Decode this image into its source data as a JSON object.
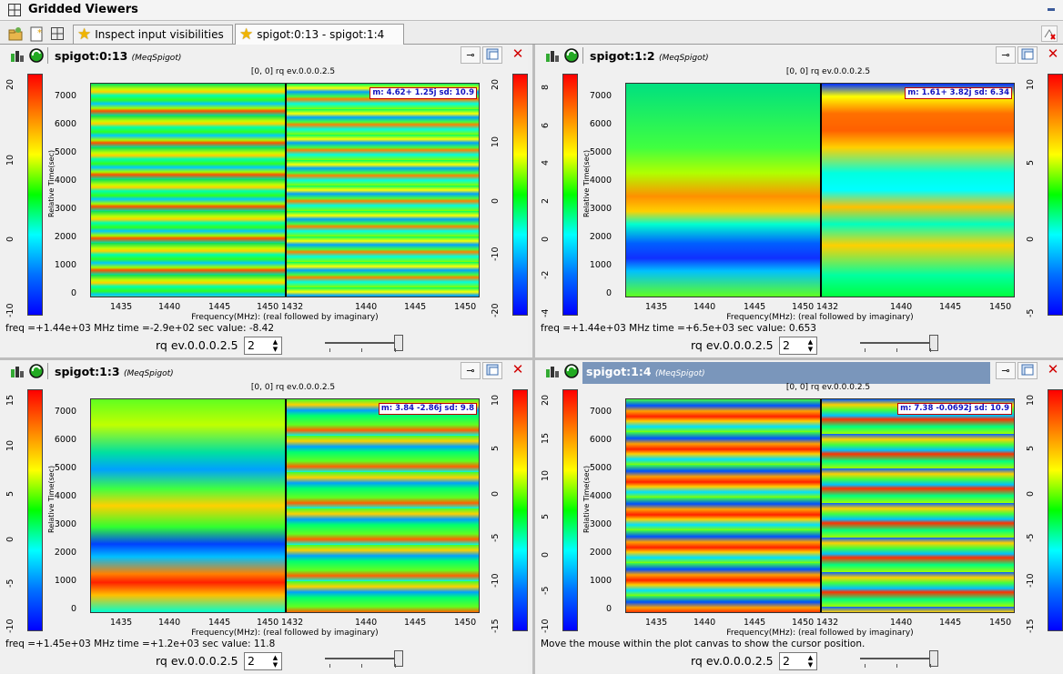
{
  "window": {
    "title": "Gridded Viewers"
  },
  "tabs": [
    {
      "label": "Inspect input visibilities"
    },
    {
      "label": "spigot:0:13 - spigot:1:4"
    }
  ],
  "panels": [
    {
      "name": "spigot:0:13",
      "class": "(MeqSpigot)",
      "subtitle": "[0, 0] rq ev.0.0.0.2.5",
      "stat": "m: 4.62+ 1.25j sd: 10.9",
      "left_ticks": [
        "20",
        "10",
        "0",
        "-10"
      ],
      "right_ticks": [
        "20",
        "10",
        "0",
        "-10",
        "-20"
      ],
      "status": "freq  =+1.44e+03 MHz  time  =-2.9e+02 sec value: -8.42",
      "ctl_label": "rq ev.0.0.0.2.5",
      "ctl_value": "2"
    },
    {
      "name": "spigot:1:2",
      "class": "(MeqSpigot)",
      "subtitle": "[0, 0] rq ev.0.0.0.2.5",
      "stat": "m: 1.61+ 3.82j sd: 6.34",
      "left_ticks": [
        "8",
        "6",
        "4",
        "2",
        "0",
        "-2",
        "-4"
      ],
      "right_ticks": [
        "10",
        "5",
        "0",
        "-5"
      ],
      "status": "freq  =+1.44e+03 MHz  time  =+6.5e+03 sec value: 0.653",
      "ctl_label": "rq ev.0.0.0.2.5",
      "ctl_value": "2"
    },
    {
      "name": "spigot:1:3",
      "class": "(MeqSpigot)",
      "subtitle": "[0, 0] rq ev.0.0.0.2.5",
      "stat": "m: 3.84 -2.86j sd: 9.8",
      "left_ticks": [
        "15",
        "10",
        "5",
        "0",
        "-5",
        "-10"
      ],
      "right_ticks": [
        "10",
        "5",
        "0",
        "-5",
        "-10",
        "-15"
      ],
      "status": "freq  =+1.45e+03 MHz  time  =+1.2e+03 sec value: 11.8",
      "ctl_label": "rq ev.0.0.0.2.5",
      "ctl_value": "2"
    },
    {
      "name": "spigot:1:4",
      "class": "(MeqSpigot)",
      "subtitle": "[0, 0] rq ev.0.0.0.2.5",
      "stat": "m: 7.38 -0.0692j sd: 10.9",
      "left_ticks": [
        "20",
        "15",
        "10",
        "5",
        "0",
        "-5",
        "-10"
      ],
      "right_ticks": [
        "10",
        "5",
        "0",
        "-5",
        "-10",
        "-15"
      ],
      "status": "Move the mouse within the plot canvas to show the cursor position.",
      "ctl_label": "rq ev.0.0.0.2.5",
      "ctl_value": "2"
    }
  ],
  "axes": {
    "y_label": "Relative Time(sec)",
    "y_ticks": [
      "7000",
      "6000",
      "5000",
      "4000",
      "3000",
      "2000",
      "1000",
      "0"
    ],
    "x_ticks_left": [
      "1435",
      "1440",
      "1445",
      "1450"
    ],
    "x_ticks_right": [
      "1432",
      "1440",
      "1445",
      "1450"
    ],
    "x_label": "Frequency(MHz): (real followed by imaginary)"
  },
  "colors": {
    "selected_header": "#7a96bb",
    "stat_text": "#1010c0",
    "stat_border": "#c00000",
    "close": "#d10000"
  }
}
